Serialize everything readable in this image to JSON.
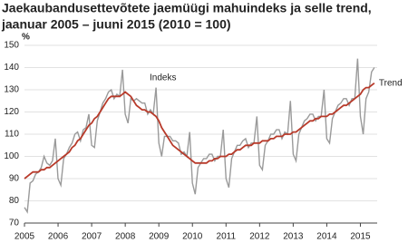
{
  "chart_data": {
    "type": "line",
    "title": [
      "Jaekaubandusettevõtete jaemüügi mahuindeks ja selle trend,",
      "jaanuar 2005 – juuni 2015 (2010 = 100)"
    ],
    "y_label": "%",
    "x": [
      2005.0,
      2005.083,
      2005.167,
      2005.25,
      2005.333,
      2005.417,
      2005.5,
      2005.583,
      2005.667,
      2005.75,
      2005.833,
      2005.917,
      2006.0,
      2006.083,
      2006.167,
      2006.25,
      2006.333,
      2006.417,
      2006.5,
      2006.583,
      2006.667,
      2006.75,
      2006.833,
      2006.917,
      2007.0,
      2007.083,
      2007.167,
      2007.25,
      2007.333,
      2007.417,
      2007.5,
      2007.583,
      2007.667,
      2007.75,
      2007.833,
      2007.917,
      2008.0,
      2008.083,
      2008.167,
      2008.25,
      2008.333,
      2008.417,
      2008.5,
      2008.583,
      2008.667,
      2008.75,
      2008.833,
      2008.917,
      2009.0,
      2009.083,
      2009.167,
      2009.25,
      2009.333,
      2009.417,
      2009.5,
      2009.583,
      2009.667,
      2009.75,
      2009.833,
      2009.917,
      2010.0,
      2010.083,
      2010.167,
      2010.25,
      2010.333,
      2010.417,
      2010.5,
      2010.583,
      2010.667,
      2010.75,
      2010.833,
      2010.917,
      2011.0,
      2011.083,
      2011.167,
      2011.25,
      2011.333,
      2011.417,
      2011.5,
      2011.583,
      2011.667,
      2011.75,
      2011.833,
      2011.917,
      2012.0,
      2012.083,
      2012.167,
      2012.25,
      2012.333,
      2012.417,
      2012.5,
      2012.583,
      2012.667,
      2012.75,
      2012.833,
      2012.917,
      2013.0,
      2013.083,
      2013.167,
      2013.25,
      2013.333,
      2013.417,
      2013.5,
      2013.583,
      2013.667,
      2013.75,
      2013.833,
      2013.917,
      2014.0,
      2014.083,
      2014.167,
      2014.25,
      2014.333,
      2014.417,
      2014.5,
      2014.583,
      2014.667,
      2014.75,
      2014.833,
      2014.917,
      2015.0,
      2015.083,
      2015.167,
      2015.25,
      2015.333,
      2015.417
    ],
    "series": [
      {
        "name": "Indeks",
        "color": "#9a9a9a",
        "values": [
          77,
          75,
          88,
          89,
          92,
          93,
          95,
          100,
          97,
          96,
          98,
          108,
          90,
          87,
          99,
          101,
          104,
          106,
          110,
          111,
          107,
          112,
          113,
          119,
          105,
          104,
          116,
          120,
          124,
          126,
          129,
          130,
          126,
          128,
          127,
          139,
          119,
          115,
          126,
          125,
          126,
          125,
          124,
          124,
          119,
          121,
          119,
          131,
          106,
          100,
          109,
          109,
          109,
          107,
          107,
          106,
          101,
          102,
          100,
          111,
          88,
          83,
          95,
          97,
          99,
          99,
          101,
          101,
          98,
          100,
          100,
          112,
          90,
          86,
          99,
          102,
          105,
          105,
          107,
          108,
          104,
          106,
          106,
          118,
          96,
          94,
          105,
          107,
          110,
          110,
          112,
          112,
          108,
          111,
          110,
          125,
          101,
          98,
          110,
          113,
          116,
          117,
          119,
          119,
          116,
          118,
          118,
          130,
          108,
          106,
          117,
          120,
          123,
          124,
          126,
          126,
          123,
          126,
          126,
          144,
          118,
          110,
          126,
          129,
          138,
          140
        ]
      },
      {
        "name": "Trend",
        "color": "#b83a2a",
        "values": [
          90,
          91,
          92,
          93,
          93,
          93,
          94,
          94,
          95,
          95,
          96,
          97,
          98,
          99,
          100,
          101,
          102,
          104,
          105,
          107,
          108,
          110,
          112,
          114,
          115,
          117,
          118,
          120,
          122,
          124,
          126,
          127,
          127,
          127,
          127,
          128,
          129,
          128,
          127,
          125,
          123,
          122,
          121,
          121,
          120,
          120,
          119,
          118,
          116,
          113,
          111,
          109,
          107,
          105,
          104,
          103,
          102,
          101,
          100,
          99,
          98,
          97,
          97,
          97,
          97,
          97,
          98,
          98,
          99,
          99,
          100,
          100,
          100,
          101,
          101,
          102,
          103,
          103,
          104,
          105,
          105,
          105,
          106,
          106,
          106,
          107,
          107,
          107,
          108,
          108,
          109,
          109,
          109,
          110,
          110,
          110,
          111,
          111,
          112,
          113,
          114,
          115,
          116,
          116,
          117,
          117,
          118,
          118,
          118,
          119,
          119,
          120,
          121,
          122,
          123,
          123,
          124,
          125,
          126,
          127,
          128,
          130,
          131,
          131,
          132,
          133
        ]
      }
    ],
    "xlim": [
      2005,
      2015.5
    ],
    "xticks": [
      2005,
      2006,
      2007,
      2008,
      2009,
      2010,
      2011,
      2012,
      2013,
      2014,
      2015
    ],
    "ylim": [
      70,
      150
    ],
    "yticks": [
      70,
      80,
      90,
      100,
      110,
      120,
      130,
      140,
      150
    ],
    "grid": true
  }
}
